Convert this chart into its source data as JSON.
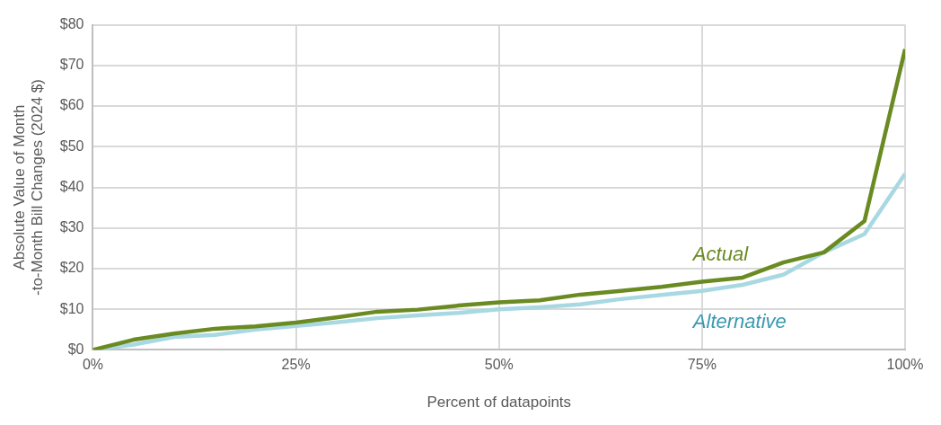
{
  "chart_data": {
    "type": "line",
    "xlabel": "Percent of datapoints",
    "ylabel": "Absolute Value of Month -to-Month Bill Changes (2024 $)",
    "x": [
      0,
      5,
      10,
      15,
      20,
      25,
      30,
      35,
      40,
      45,
      50,
      55,
      60,
      65,
      70,
      75,
      80,
      85,
      90,
      95,
      100
    ],
    "series": [
      {
        "name": "Actual",
        "color": "#6a8a22",
        "values": [
          0,
          2.5,
          4,
          5.2,
          5.8,
          6.7,
          8,
          9.4,
          9.9,
          10.9,
          11.7,
          12.2,
          13.6,
          14.5,
          15.5,
          16.8,
          17.8,
          21.5,
          24,
          31.7,
          74
        ]
      },
      {
        "name": "Alternative",
        "color": "#a8d8e2",
        "values": [
          0,
          1.3,
          3.2,
          3.7,
          5,
          5.9,
          6.8,
          7.8,
          8.5,
          9.1,
          10,
          10.5,
          11.2,
          12.5,
          13.5,
          14.5,
          16,
          18.5,
          24,
          28.5,
          43.3
        ]
      }
    ],
    "xlim": [
      0,
      100
    ],
    "xticks": [
      {
        "value": 0,
        "label": "0%"
      },
      {
        "value": 25,
        "label": "25%"
      },
      {
        "value": 50,
        "label": "50%"
      },
      {
        "value": 75,
        "label": "75%"
      },
      {
        "value": 100,
        "label": "100%"
      }
    ],
    "ylim": [
      0,
      80
    ],
    "yticks": [
      {
        "value": 0,
        "label": "$0"
      },
      {
        "value": 10,
        "label": "$10"
      },
      {
        "value": 20,
        "label": "$20"
      },
      {
        "value": 30,
        "label": "$30"
      },
      {
        "value": 40,
        "label": "$40"
      },
      {
        "value": 50,
        "label": "$50"
      },
      {
        "value": 60,
        "label": "$60"
      },
      {
        "value": 70,
        "label": "$70"
      },
      {
        "value": 80,
        "label": "$80"
      }
    ],
    "grid": true,
    "legend": false,
    "marker": "none",
    "line_style": "solid"
  }
}
